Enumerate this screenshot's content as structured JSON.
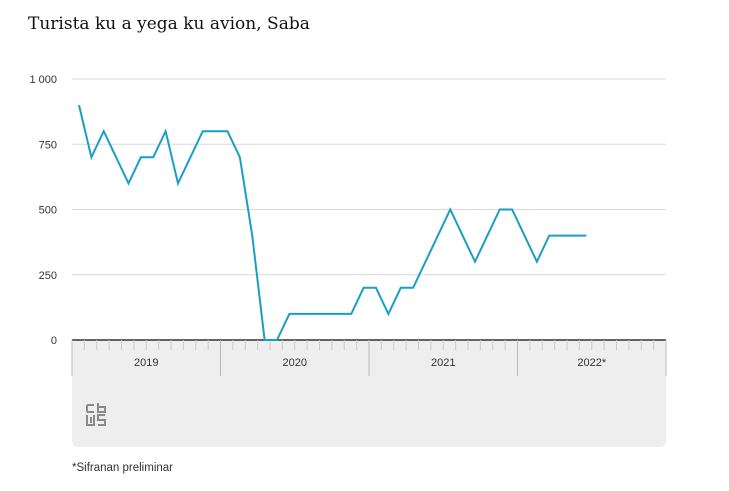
{
  "title": "Turista ku a yega ku avion, Saba",
  "footnote": "*Sifranan preliminar",
  "logo": {
    "icon": "cbs-logo-icon"
  },
  "colors": {
    "line": "#1a9fc4",
    "grid": "#d9d9d9",
    "axis": "#333333",
    "panel": "#eeeeee"
  },
  "chart_data": {
    "type": "line",
    "title": "Turista ku a yega ku avion, Saba",
    "xlabel": "",
    "ylabel": "",
    "ylim": [
      0,
      1000
    ],
    "yticks": [
      0,
      250,
      500,
      750,
      1000
    ],
    "ytick_labels": [
      "0",
      "250",
      "500",
      "750",
      "1 000"
    ],
    "years": [
      "2019",
      "2020",
      "2021",
      "2022*"
    ],
    "months_per_year": 12,
    "grid": true,
    "series": [
      {
        "name": "Turista ku a yega ku avion",
        "values": [
          900,
          700,
          800,
          700,
          600,
          700,
          700,
          800,
          600,
          700,
          800,
          800,
          800,
          700,
          400,
          0,
          0,
          100,
          100,
          100,
          100,
          100,
          100,
          200,
          200,
          100,
          200,
          200,
          300,
          400,
          500,
          400,
          300,
          400,
          500,
          500,
          400,
          300,
          400,
          400,
          400,
          400
        ]
      }
    ]
  }
}
